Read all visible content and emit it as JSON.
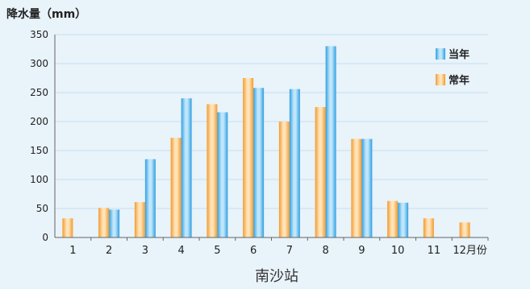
{
  "chart_data": {
    "type": "bar",
    "title": "南沙站",
    "ylabel": "降水量（mm）",
    "xlabel": "",
    "categories": [
      "1",
      "2",
      "3",
      "4",
      "5",
      "6",
      "7",
      "8",
      "9",
      "10",
      "11",
      "12月份"
    ],
    "series": [
      {
        "name": "当年",
        "color": "#2f9fe0",
        "values": [
          0,
          48,
          135,
          240,
          216,
          258,
          256,
          330,
          170,
          60,
          0,
          0
        ]
      },
      {
        "name": "常年",
        "color": "#f39a2b",
        "values": [
          33,
          51,
          61,
          172,
          230,
          275,
          200,
          225,
          170,
          63,
          33,
          26
        ]
      }
    ],
    "ylim": [
      0,
      350
    ],
    "yticks": [
      0,
      50,
      100,
      150,
      200,
      250,
      300,
      350
    ],
    "grid": true,
    "legend_position": "top-right",
    "background": "#e8f3fa",
    "grid_color": "#c9dff0"
  }
}
